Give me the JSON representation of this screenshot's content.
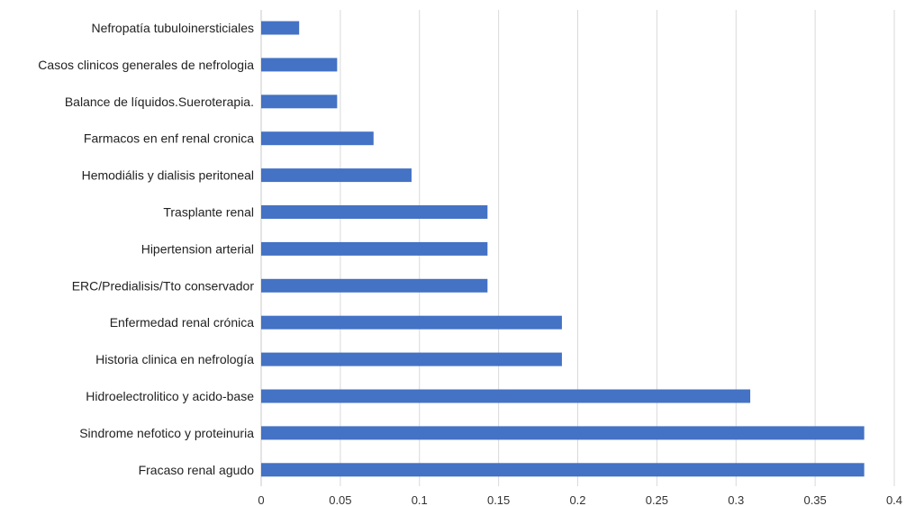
{
  "chart_data": {
    "type": "bar",
    "orientation": "horizontal",
    "categories": [
      "Nefropatía tubuloinersticiales",
      "Casos clinicos generales de nefrologia",
      "Balance de líquidos.Sueroterapia.",
      "Farmacos en enf renal cronica",
      "Hemodiális y dialisis peritoneal",
      "Trasplante renal",
      "Hipertension arterial",
      "ERC/Predialisis/Tto conservador",
      "Enfermedad renal crónica",
      "Historia clinica en nefrología",
      "Hidroelectrolitico y acido-base",
      "Sindrome nefotico y proteinuria",
      "Fracaso renal agudo"
    ],
    "values": [
      0.024,
      0.048,
      0.048,
      0.071,
      0.095,
      0.143,
      0.143,
      0.143,
      0.19,
      0.19,
      0.309,
      0.381,
      0.381
    ],
    "xlim": [
      0,
      0.4
    ],
    "x_ticks": [
      "0",
      "0.05",
      "0.1",
      "0.15",
      "0.2",
      "0.25",
      "0.3",
      "0.35",
      "0.4"
    ],
    "x_tick_values": [
      0,
      0.05,
      0.1,
      0.15,
      0.2,
      0.25,
      0.3,
      0.35,
      0.4
    ],
    "grid": "vertical",
    "legend": "none",
    "bar_color": "#4472c4"
  }
}
